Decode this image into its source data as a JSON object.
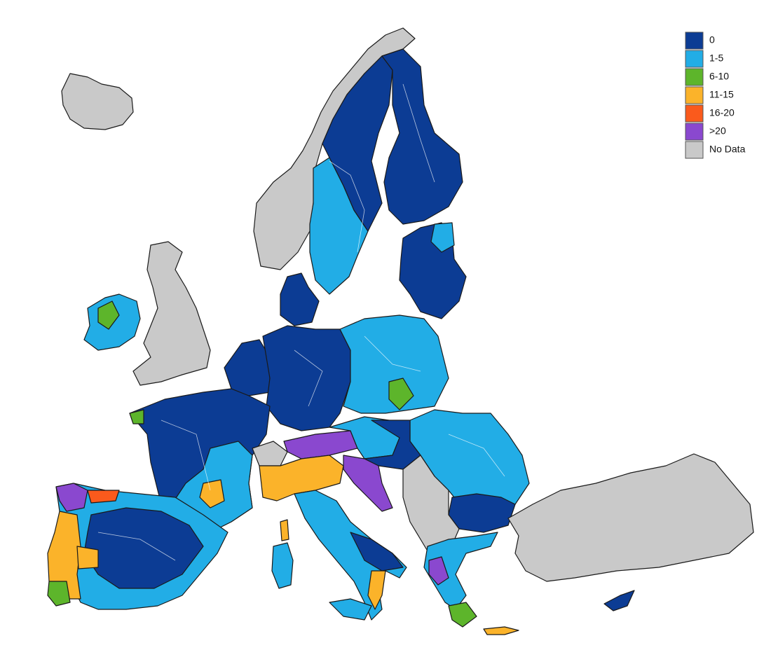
{
  "legend": {
    "items": [
      {
        "label": "0",
        "color": "#0c3c94"
      },
      {
        "label": "1-5",
        "color": "#22ade6"
      },
      {
        "label": "6-10",
        "color": "#5db52b"
      },
      {
        "label": "11-15",
        "color": "#fbb32a"
      },
      {
        "label": "16-20",
        "color": "#fa5a1c"
      },
      {
        "label": ">20",
        "color": "#8a48cf"
      },
      {
        "label": "No Data",
        "color": "#c9c9c9"
      }
    ]
  }
}
